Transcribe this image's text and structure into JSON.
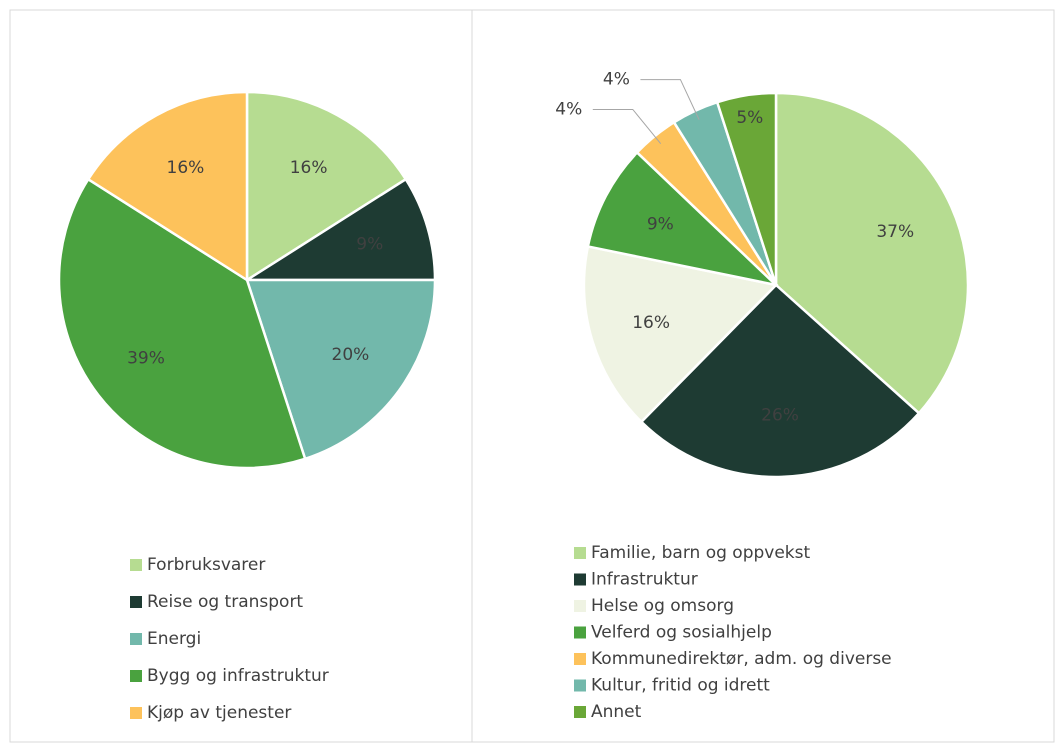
{
  "chart_data": [
    {
      "type": "pie",
      "categories": [
        "Forbruksvarer",
        "Reise og transport",
        "Energi",
        "Bygg og infrastruktur",
        "Kjøp av tjenester"
      ],
      "values": [
        16,
        9,
        20,
        39,
        16
      ],
      "value_labels": [
        "16%",
        "9%",
        "20%",
        "39%",
        "16%"
      ],
      "colors": [
        "#b6dc91",
        "#1e3b33",
        "#72b8ab",
        "#4aa23f",
        "#fdc25b"
      ]
    },
    {
      "type": "pie",
      "categories": [
        "Familie, barn og oppvekst",
        "Infrastruktur",
        "Helse og omsorg",
        "Velferd og sosialhjelp",
        "Kommunedirektør, adm. og diverse",
        "Kultur, fritid og idrett",
        "Annet"
      ],
      "values": [
        37,
        26,
        16,
        9,
        4,
        4,
        5
      ],
      "value_labels": [
        "37%",
        "26%",
        "16%",
        "9%",
        "4%",
        "4%",
        "5%"
      ],
      "colors": [
        "#b6dc91",
        "#1e3b33",
        "#eff3e3",
        "#4aa23f",
        "#fdc25b",
        "#72b8ab",
        "#6aa737"
      ]
    }
  ]
}
